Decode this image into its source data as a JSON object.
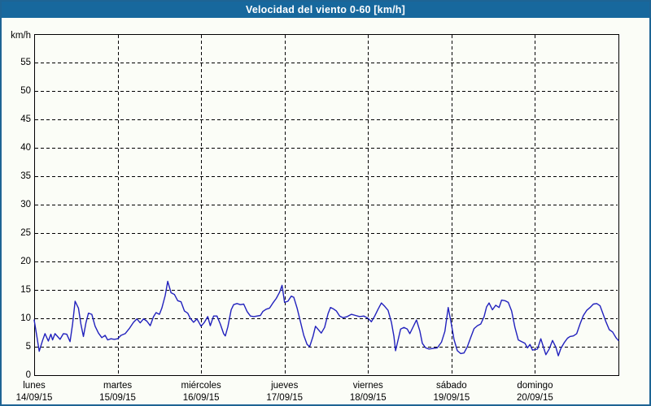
{
  "window": {
    "title": "Velocidad del viento 0-60 [km/h]"
  },
  "colors": {
    "titlebar_bg": "#17689d",
    "titlebar_text": "#ffffff",
    "frame_border": "#1e6494",
    "canvas_bg": "#fbfdf7",
    "plot_border": "#000000",
    "gridline": "#000000",
    "line": "#2121bd"
  },
  "chart_data": {
    "type": "line",
    "title": "Velocidad del viento 0-60 [km/h]",
    "ylabel": "km/h",
    "xlabel": "",
    "ylim": [
      0,
      60
    ],
    "xlim": [
      0,
      7
    ],
    "ytick_step": 5,
    "ytick_labels": [
      "0",
      "5",
      "10",
      "15",
      "20",
      "25",
      "30",
      "35",
      "40",
      "45",
      "50",
      "55"
    ],
    "grid": "dashed",
    "legend_position": "none",
    "x_ticks": [
      {
        "day": "lunes",
        "date": "14/09/15"
      },
      {
        "day": "martes",
        "date": "15/09/15"
      },
      {
        "day": "miércoles",
        "date": "16/09/15"
      },
      {
        "day": "jueves",
        "date": "17/09/15"
      },
      {
        "day": "viernes",
        "date": "18/09/15"
      },
      {
        "day": "sábado",
        "date": "19/09/15"
      },
      {
        "day": "domingo",
        "date": "20/09/15"
      }
    ],
    "series": [
      {
        "name": "Velocidad del viento",
        "color": "#2121bd",
        "points": [
          [
            0.0,
            9.7
          ],
          [
            0.03,
            7.0
          ],
          [
            0.06,
            4.2
          ],
          [
            0.1,
            6.1
          ],
          [
            0.13,
            7.3
          ],
          [
            0.17,
            6.0
          ],
          [
            0.2,
            7.2
          ],
          [
            0.22,
            6.2
          ],
          [
            0.25,
            7.3
          ],
          [
            0.31,
            6.3
          ],
          [
            0.35,
            7.3
          ],
          [
            0.39,
            7.2
          ],
          [
            0.43,
            5.9
          ],
          [
            0.46,
            9.0
          ],
          [
            0.49,
            13.0
          ],
          [
            0.53,
            11.8
          ],
          [
            0.56,
            9.0
          ],
          [
            0.59,
            6.8
          ],
          [
            0.62,
            9.2
          ],
          [
            0.65,
            10.9
          ],
          [
            0.69,
            10.7
          ],
          [
            0.73,
            8.6
          ],
          [
            0.77,
            7.4
          ],
          [
            0.81,
            6.6
          ],
          [
            0.85,
            7.0
          ],
          [
            0.88,
            6.2
          ],
          [
            0.92,
            6.4
          ],
          [
            0.96,
            6.3
          ],
          [
            1.0,
            6.4
          ],
          [
            1.04,
            7.0
          ],
          [
            1.09,
            7.3
          ],
          [
            1.14,
            8.2
          ],
          [
            1.19,
            9.3
          ],
          [
            1.23,
            9.9
          ],
          [
            1.27,
            9.2
          ],
          [
            1.31,
            9.9
          ],
          [
            1.35,
            9.5
          ],
          [
            1.39,
            8.7
          ],
          [
            1.43,
            10.3
          ],
          [
            1.46,
            11.0
          ],
          [
            1.5,
            10.7
          ],
          [
            1.53,
            11.8
          ],
          [
            1.57,
            14.0
          ],
          [
            1.6,
            16.5
          ],
          [
            1.64,
            14.5
          ],
          [
            1.68,
            14.2
          ],
          [
            1.72,
            13.1
          ],
          [
            1.76,
            12.9
          ],
          [
            1.8,
            11.3
          ],
          [
            1.84,
            10.9
          ],
          [
            1.87,
            10.0
          ],
          [
            1.91,
            9.3
          ],
          [
            1.95,
            9.9
          ],
          [
            2.0,
            8.6
          ],
          [
            2.04,
            9.3
          ],
          [
            2.08,
            10.3
          ],
          [
            2.11,
            8.7
          ],
          [
            2.15,
            10.4
          ],
          [
            2.19,
            10.4
          ],
          [
            2.23,
            9.0
          ],
          [
            2.27,
            7.3
          ],
          [
            2.29,
            6.9
          ],
          [
            2.32,
            8.5
          ],
          [
            2.36,
            11.5
          ],
          [
            2.39,
            12.4
          ],
          [
            2.43,
            12.6
          ],
          [
            2.47,
            12.4
          ],
          [
            2.51,
            12.5
          ],
          [
            2.55,
            11.2
          ],
          [
            2.59,
            10.4
          ],
          [
            2.63,
            10.3
          ],
          [
            2.67,
            10.4
          ],
          [
            2.71,
            10.5
          ],
          [
            2.74,
            11.2
          ],
          [
            2.78,
            11.6
          ],
          [
            2.82,
            11.8
          ],
          [
            2.86,
            12.7
          ],
          [
            2.9,
            13.5
          ],
          [
            2.94,
            14.6
          ],
          [
            2.97,
            15.8
          ],
          [
            3.0,
            12.8
          ],
          [
            3.04,
            13.0
          ],
          [
            3.08,
            13.9
          ],
          [
            3.11,
            13.7
          ],
          [
            3.15,
            11.8
          ],
          [
            3.19,
            9.4
          ],
          [
            3.23,
            7.0
          ],
          [
            3.27,
            5.4
          ],
          [
            3.3,
            5.0
          ],
          [
            3.34,
            6.8
          ],
          [
            3.37,
            8.6
          ],
          [
            3.41,
            7.9
          ],
          [
            3.44,
            7.4
          ],
          [
            3.48,
            8.4
          ],
          [
            3.52,
            10.8
          ],
          [
            3.55,
            11.9
          ],
          [
            3.58,
            11.7
          ],
          [
            3.62,
            11.3
          ],
          [
            3.66,
            10.4
          ],
          [
            3.7,
            10.1
          ],
          [
            3.75,
            10.3
          ],
          [
            3.8,
            10.7
          ],
          [
            3.85,
            10.5
          ],
          [
            3.9,
            10.3
          ],
          [
            3.95,
            10.4
          ],
          [
            4.0,
            10.0
          ],
          [
            4.04,
            9.4
          ],
          [
            4.08,
            10.4
          ],
          [
            4.12,
            11.6
          ],
          [
            4.16,
            12.7
          ],
          [
            4.2,
            12.1
          ],
          [
            4.24,
            11.4
          ],
          [
            4.28,
            9.3
          ],
          [
            4.31,
            6.8
          ],
          [
            4.33,
            4.3
          ],
          [
            4.36,
            6.2
          ],
          [
            4.39,
            8.1
          ],
          [
            4.43,
            8.4
          ],
          [
            4.47,
            8.1
          ],
          [
            4.5,
            7.3
          ],
          [
            4.54,
            8.5
          ],
          [
            4.58,
            9.7
          ],
          [
            4.62,
            7.8
          ],
          [
            4.65,
            5.6
          ],
          [
            4.69,
            4.8
          ],
          [
            4.73,
            4.6
          ],
          [
            4.78,
            4.7
          ],
          [
            4.83,
            4.8
          ],
          [
            4.88,
            5.8
          ],
          [
            4.92,
            7.7
          ],
          [
            4.96,
            11.9
          ],
          [
            5.0,
            8.8
          ],
          [
            5.03,
            6.3
          ],
          [
            5.07,
            4.3
          ],
          [
            5.11,
            3.8
          ],
          [
            5.15,
            3.9
          ],
          [
            5.19,
            5.0
          ],
          [
            5.23,
            6.6
          ],
          [
            5.27,
            8.2
          ],
          [
            5.31,
            8.7
          ],
          [
            5.35,
            9.0
          ],
          [
            5.39,
            10.3
          ],
          [
            5.42,
            12.0
          ],
          [
            5.45,
            12.7
          ],
          [
            5.49,
            11.5
          ],
          [
            5.53,
            12.3
          ],
          [
            5.57,
            11.9
          ],
          [
            5.6,
            13.2
          ],
          [
            5.64,
            13.1
          ],
          [
            5.68,
            12.8
          ],
          [
            5.72,
            11.3
          ],
          [
            5.76,
            8.4
          ],
          [
            5.8,
            6.2
          ],
          [
            5.84,
            5.9
          ],
          [
            5.88,
            5.6
          ],
          [
            5.91,
            4.8
          ],
          [
            5.94,
            5.4
          ],
          [
            5.97,
            4.4
          ],
          [
            6.0,
            4.5
          ],
          [
            6.03,
            4.6
          ],
          [
            6.07,
            6.4
          ],
          [
            6.1,
            5.0
          ],
          [
            6.13,
            3.6
          ],
          [
            6.17,
            4.6
          ],
          [
            6.21,
            6.1
          ],
          [
            6.25,
            4.9
          ],
          [
            6.28,
            3.4
          ],
          [
            6.31,
            4.7
          ],
          [
            6.35,
            5.7
          ],
          [
            6.39,
            6.5
          ],
          [
            6.42,
            6.8
          ],
          [
            6.46,
            6.9
          ],
          [
            6.5,
            7.3
          ],
          [
            6.54,
            9.0
          ],
          [
            6.58,
            10.5
          ],
          [
            6.62,
            11.4
          ],
          [
            6.66,
            11.9
          ],
          [
            6.7,
            12.5
          ],
          [
            6.74,
            12.6
          ],
          [
            6.78,
            12.2
          ],
          [
            6.81,
            11.0
          ],
          [
            6.85,
            9.4
          ],
          [
            6.89,
            8.0
          ],
          [
            6.93,
            7.6
          ],
          [
            6.97,
            6.6
          ],
          [
            7.0,
            6.1
          ]
        ]
      }
    ]
  }
}
